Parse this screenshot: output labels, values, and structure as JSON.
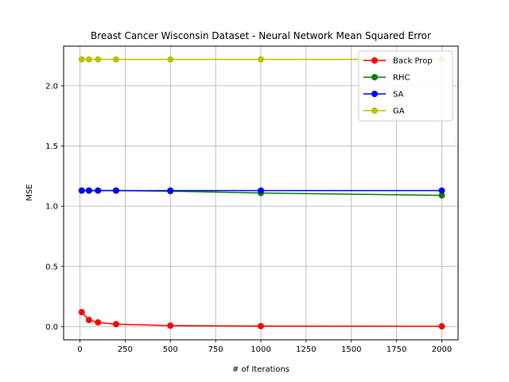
{
  "chart_data": {
    "type": "line",
    "title": "Breast Cancer Wisconsin Dataset - Neural Network Mean Squared Error",
    "xlabel": "# of Iterations",
    "ylabel": "MSE",
    "xlim": [
      -90,
      2090
    ],
    "ylim": [
      -0.11,
      2.33
    ],
    "xticks": [
      0,
      250,
      500,
      750,
      1000,
      1250,
      1500,
      1750,
      2000
    ],
    "yticks": [
      0.0,
      0.5,
      1.0,
      1.5,
      2.0
    ],
    "xtick_labels": [
      "0",
      "250",
      "500",
      "750",
      "1000",
      "1250",
      "1500",
      "1750",
      "2000"
    ],
    "ytick_labels": [
      "0.0",
      "0.5",
      "1.0",
      "1.5",
      "2.0"
    ],
    "grid": true,
    "legend_position": "top-right",
    "x": [
      10,
      50,
      100,
      200,
      500,
      1000,
      2000
    ],
    "series": [
      {
        "name": "Back Prop",
        "color": "#ff0000",
        "values": [
          0.12,
          0.055,
          0.035,
          0.02,
          0.008,
          0.004,
          0.002
        ]
      },
      {
        "name": "RHC",
        "color": "#008000",
        "values": [
          1.13,
          1.13,
          1.13,
          1.13,
          1.125,
          1.11,
          1.09
        ]
      },
      {
        "name": "SA",
        "color": "#0000ff",
        "values": [
          1.13,
          1.13,
          1.13,
          1.13,
          1.13,
          1.13,
          1.13
        ]
      },
      {
        "name": "GA",
        "color": "#bfbf00",
        "values": [
          2.22,
          2.22,
          2.22,
          2.22,
          2.22,
          2.22,
          2.22
        ]
      }
    ]
  }
}
